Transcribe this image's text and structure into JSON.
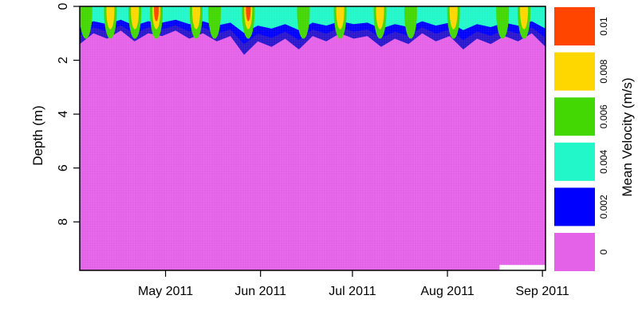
{
  "chart_data": {
    "type": "heatmap",
    "title": "",
    "xlabel": "",
    "ylabel": "Depth (m)",
    "x_tick_labels": [
      "May 2011",
      "Jun 2011",
      "Jul 2011",
      "Aug 2011",
      "Sep 2011"
    ],
    "x_tick_dates": [
      "2011-05-01",
      "2011-06-01",
      "2011-07-01",
      "2011-08-01",
      "2011-09-01"
    ],
    "xlim": [
      "2011-04-03",
      "2011-09-02"
    ],
    "y_tick_values": [
      0,
      2,
      4,
      6,
      8
    ],
    "y_tick_labels": [
      "0",
      "2",
      "4",
      "6",
      "8"
    ],
    "ylim": [
      0,
      9.8
    ],
    "y_reversed": true,
    "colorbar": {
      "label": "Mean Velocity (m/s)",
      "levels": [
        0,
        0.002,
        0.004,
        0.006,
        0.008,
        0.01
      ],
      "level_labels": [
        "0",
        "0.002",
        "0.004",
        "0.006",
        "0.008",
        "0.01"
      ],
      "colors": [
        "#e462e8",
        "#0000ff",
        "#21f7c8",
        "#43d704",
        "#ffd700",
        "#ff4500"
      ]
    },
    "velocity_structure": {
      "summary": "Velocity above 0.002 m/s is confined to roughly the top 1.0-1.8 m; below that depth mean velocity stays under 0.002 m/s.",
      "flow_depth_m": [
        1.4,
        1.0,
        1.2,
        0.9,
        1.3,
        1.0,
        1.1,
        0.9,
        1.2,
        1.0,
        1.3,
        1.1,
        1.8,
        1.3,
        1.5,
        1.2,
        1.6,
        1.1,
        1.3,
        1.0,
        1.2,
        1.1,
        1.5,
        1.2,
        1.4,
        1.0,
        1.3,
        1.1,
        1.6,
        1.2,
        1.4,
        1.1,
        1.3,
        1.0,
        1.5
      ],
      "surface_maxima": [
        {
          "date": "2011-04-05",
          "depth_m": 0.3,
          "velocity": 0.006
        },
        {
          "date": "2011-04-13",
          "depth_m": 0.3,
          "velocity": 0.008
        },
        {
          "date": "2011-04-21",
          "depth_m": 0.3,
          "velocity": 0.008
        },
        {
          "date": "2011-04-28",
          "depth_m": 0.3,
          "velocity": 0.01
        },
        {
          "date": "2011-05-11",
          "depth_m": 0.3,
          "velocity": 0.008
        },
        {
          "date": "2011-05-17",
          "depth_m": 0.3,
          "velocity": 0.006
        },
        {
          "date": "2011-05-28",
          "depth_m": 0.3,
          "velocity": 0.01
        },
        {
          "date": "2011-06-15",
          "depth_m": 0.3,
          "velocity": 0.006
        },
        {
          "date": "2011-06-27",
          "depth_m": 0.3,
          "velocity": 0.008
        },
        {
          "date": "2011-07-10",
          "depth_m": 0.3,
          "velocity": 0.008
        },
        {
          "date": "2011-07-20",
          "depth_m": 0.3,
          "velocity": 0.006
        },
        {
          "date": "2011-08-03",
          "depth_m": 0.3,
          "velocity": 0.008
        },
        {
          "date": "2011-08-19",
          "depth_m": 0.3,
          "velocity": 0.006
        },
        {
          "date": "2011-08-26",
          "depth_m": 0.3,
          "velocity": 0.008
        }
      ]
    },
    "missing_data": {
      "date_range": [
        "2011-08-18",
        "2011-09-02"
      ],
      "depth_m": [
        9.6,
        9.8
      ]
    }
  }
}
